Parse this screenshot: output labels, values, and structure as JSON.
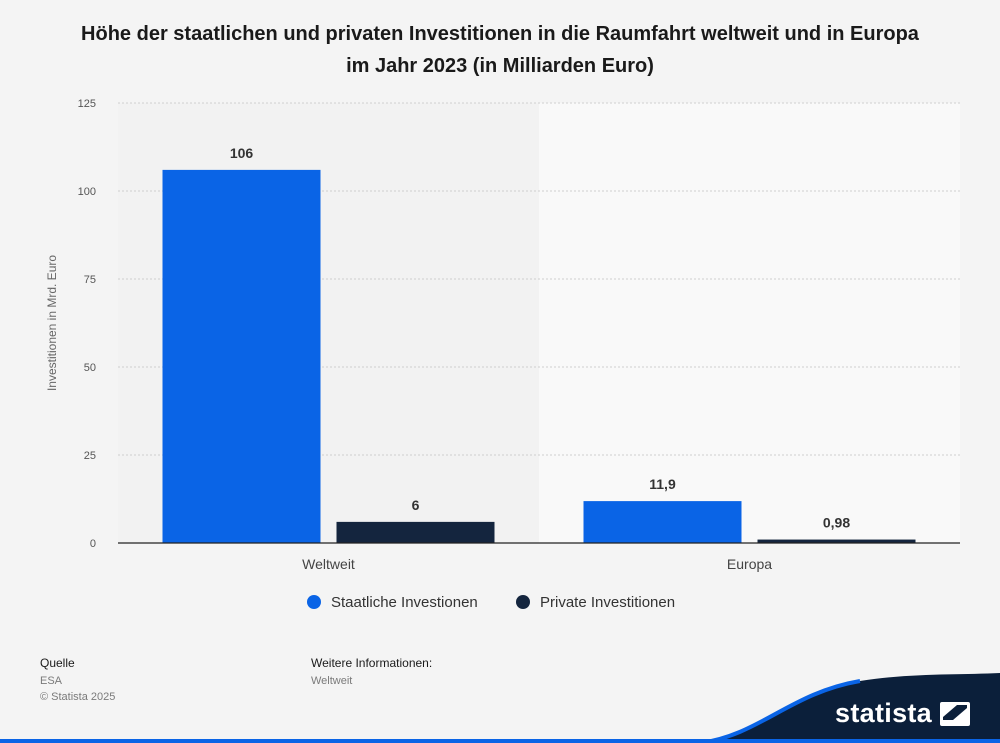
{
  "title": "Höhe der staatlichen und privaten Investitionen in die Raumfahrt weltweit und in Europa im Jahr 2023 (in Milliarden Euro)",
  "chart_data": {
    "type": "bar",
    "categories": [
      "Weltweit",
      "Europa"
    ],
    "series": [
      {
        "name": "Staatliche Investionen",
        "values": [
          106,
          11.9
        ],
        "labels": [
          "106",
          "11,9"
        ],
        "color": "#0a64e6"
      },
      {
        "name": "Private Investitionen",
        "values": [
          6,
          0.98
        ],
        "labels": [
          "6",
          "0,98"
        ],
        "color": "#14253e"
      }
    ],
    "ylabel": "Investitionen in Mrd. Euro",
    "ylim": [
      0,
      125
    ],
    "yticks": [
      0,
      25,
      50,
      75,
      100,
      125
    ],
    "grid": true,
    "legend_position": "bottom"
  },
  "footer": {
    "source_heading": "Quelle",
    "source_value": "ESA",
    "copyright": "© Statista 2025",
    "info_heading": "Weitere Informationen:",
    "info_value": "Weltweit"
  },
  "brand": {
    "name": "statista",
    "accent": "#0a64e6",
    "dark": "#0b1f3a"
  }
}
